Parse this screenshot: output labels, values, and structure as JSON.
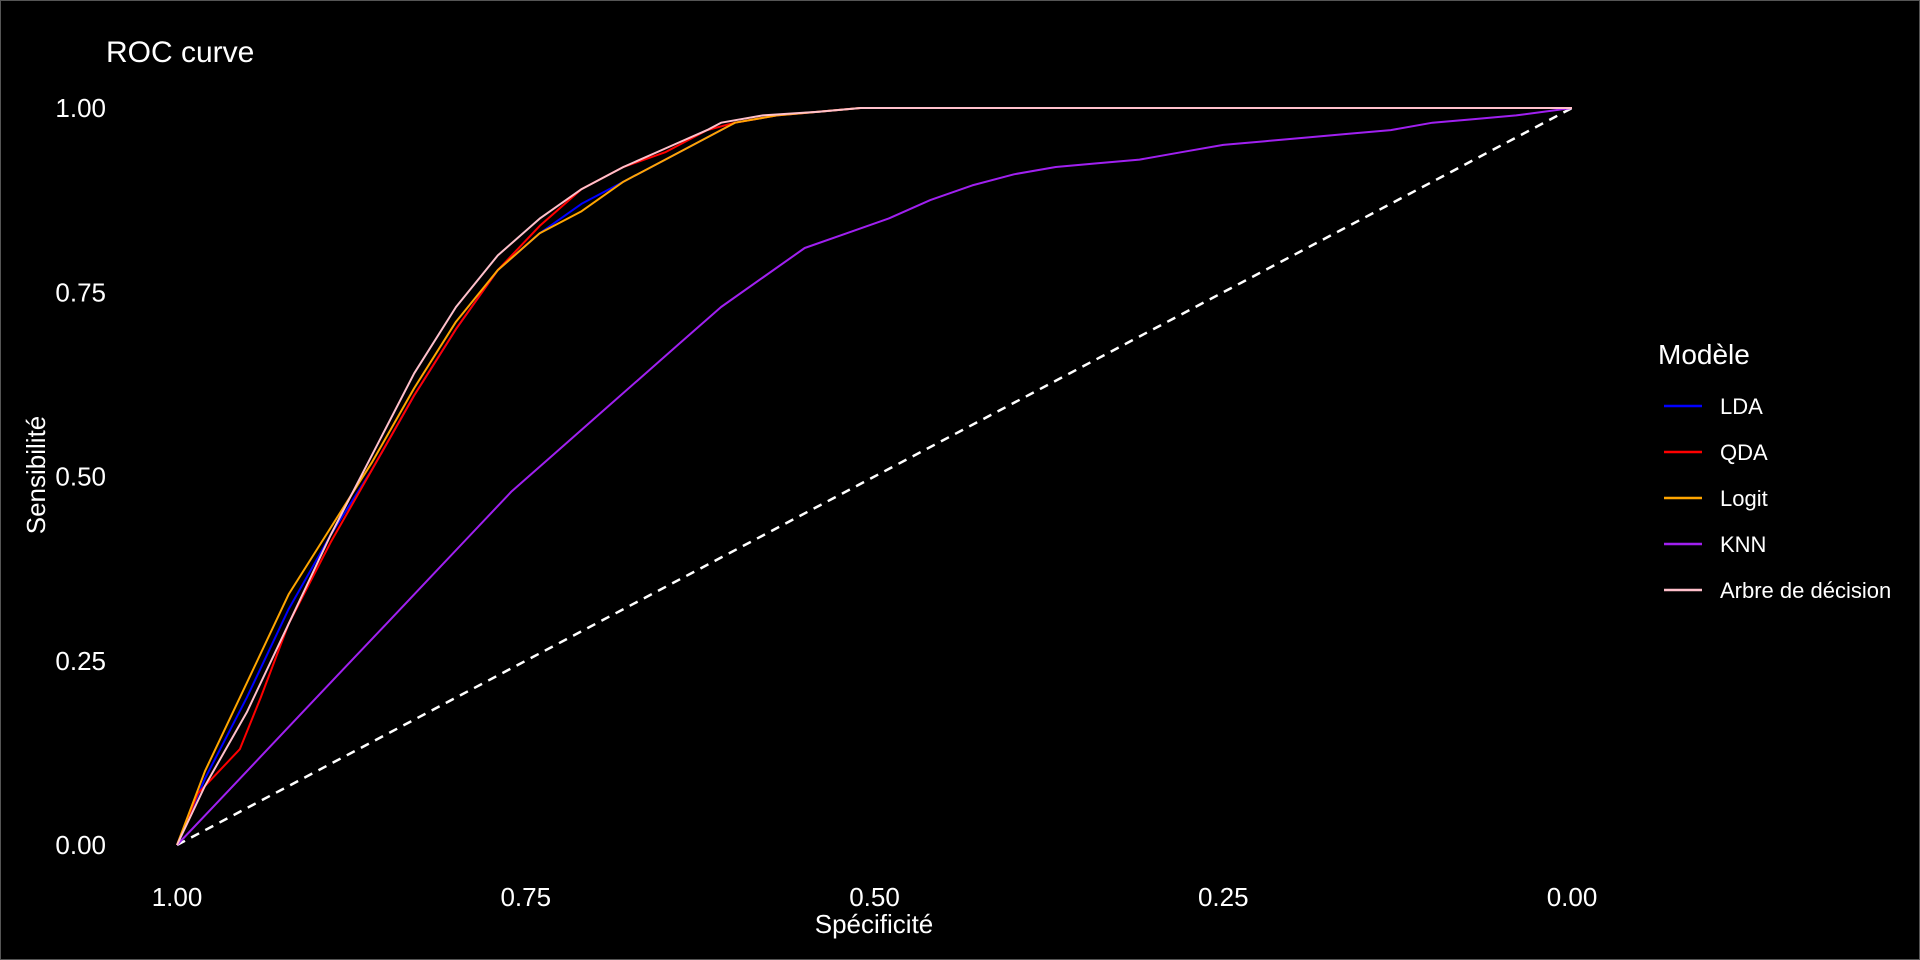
{
  "chart_data": {
    "type": "line",
    "title": "ROC curve",
    "xlabel": "Spécificité",
    "ylabel": "Sensibilité",
    "x_reversed": true,
    "xlim": [
      1.0,
      0.0
    ],
    "ylim": [
      0.0,
      1.0
    ],
    "x_ticks": [
      "1.00",
      "0.75",
      "0.50",
      "0.25",
      "0.00"
    ],
    "y_ticks": [
      "0.00",
      "0.25",
      "0.50",
      "0.75",
      "1.00"
    ],
    "grid": false,
    "background": "#000000",
    "legend": {
      "title": "Modèle",
      "placement": "right"
    },
    "diagonal": {
      "style": "dashed",
      "color": "#ffffff",
      "x": [
        1.0,
        0.0
      ],
      "y": [
        0.0,
        1.0
      ]
    },
    "series": [
      {
        "name": "LDA",
        "color": "#0000ff",
        "x": [
          1.0,
          0.98,
          0.95,
          0.92,
          0.89,
          0.86,
          0.83,
          0.8,
          0.77,
          0.74,
          0.71,
          0.68,
          0.65,
          0.62,
          0.6,
          0.57,
          0.54,
          0.51,
          0.45,
          0.0
        ],
        "y": [
          0.0,
          0.09,
          0.2,
          0.32,
          0.42,
          0.51,
          0.61,
          0.7,
          0.78,
          0.83,
          0.87,
          0.9,
          0.93,
          0.96,
          0.98,
          0.99,
          0.995,
          1.0,
          1.0,
          1.0
        ]
      },
      {
        "name": "QDA",
        "color": "#ff0000",
        "x": [
          1.0,
          0.985,
          0.97,
          0.955,
          0.94,
          0.92,
          0.89,
          0.86,
          0.83,
          0.8,
          0.77,
          0.74,
          0.71,
          0.68,
          0.65,
          0.62,
          0.6,
          0.57,
          0.51,
          0.45,
          0.0
        ],
        "y": [
          0.0,
          0.07,
          0.1,
          0.13,
          0.2,
          0.3,
          0.41,
          0.51,
          0.61,
          0.7,
          0.78,
          0.84,
          0.89,
          0.92,
          0.94,
          0.97,
          0.98,
          0.99,
          1.0,
          1.0,
          1.0
        ]
      },
      {
        "name": "Logit",
        "color": "#ffa500",
        "x": [
          1.0,
          0.98,
          0.95,
          0.92,
          0.89,
          0.86,
          0.83,
          0.8,
          0.77,
          0.74,
          0.71,
          0.68,
          0.65,
          0.62,
          0.6,
          0.57,
          0.54,
          0.51,
          0.45,
          0.0
        ],
        "y": [
          0.0,
          0.1,
          0.22,
          0.34,
          0.43,
          0.52,
          0.62,
          0.71,
          0.78,
          0.83,
          0.86,
          0.9,
          0.93,
          0.96,
          0.98,
          0.99,
          0.995,
          1.0,
          1.0,
          1.0
        ]
      },
      {
        "name": "KNN",
        "color": "#a020f0",
        "x": [
          1.0,
          0.97,
          0.94,
          0.91,
          0.88,
          0.85,
          0.82,
          0.79,
          0.76,
          0.73,
          0.7,
          0.67,
          0.64,
          0.61,
          0.58,
          0.55,
          0.52,
          0.49,
          0.46,
          0.43,
          0.4,
          0.37,
          0.34,
          0.31,
          0.28,
          0.25,
          0.22,
          0.19,
          0.16,
          0.13,
          0.1,
          0.07,
          0.04,
          0.0
        ],
        "y": [
          0.0,
          0.06,
          0.12,
          0.18,
          0.24,
          0.3,
          0.36,
          0.42,
          0.48,
          0.53,
          0.58,
          0.63,
          0.68,
          0.73,
          0.77,
          0.81,
          0.83,
          0.85,
          0.875,
          0.895,
          0.91,
          0.92,
          0.925,
          0.93,
          0.94,
          0.95,
          0.955,
          0.96,
          0.965,
          0.97,
          0.98,
          0.985,
          0.99,
          1.0
        ]
      },
      {
        "name": "Arbre de décision",
        "color": "#ffc0cb",
        "x": [
          1.0,
          0.98,
          0.95,
          0.92,
          0.89,
          0.86,
          0.83,
          0.8,
          0.77,
          0.74,
          0.71,
          0.68,
          0.65,
          0.62,
          0.61,
          0.58,
          0.54,
          0.51,
          0.45,
          0.0
        ],
        "y": [
          0.0,
          0.08,
          0.18,
          0.3,
          0.42,
          0.53,
          0.64,
          0.73,
          0.8,
          0.85,
          0.89,
          0.92,
          0.945,
          0.97,
          0.98,
          0.99,
          0.995,
          1.0,
          1.0,
          1.0
        ]
      }
    ]
  }
}
